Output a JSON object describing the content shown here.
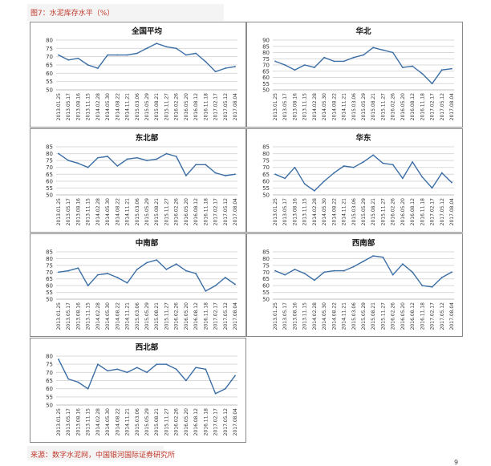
{
  "figure": {
    "title": "图7：水泥库存水平（%）",
    "source": "来源：数字水泥网，中国银河国际证券研究所",
    "page": "9"
  },
  "chart_data": [
    {
      "type": "line",
      "title": "全国平均",
      "ylim": [
        50,
        80
      ],
      "yticks": [
        50,
        55,
        60,
        65,
        70,
        75,
        80
      ],
      "x": [
        "2013.01.25",
        "2013.05.17",
        "2013.08.16",
        "2013.11.15",
        "2014.02.28",
        "2014.05.30",
        "2014.08.22",
        "2014.11.21",
        "2015.03.06",
        "2015.05.29",
        "2015.08.21",
        "2015.11.27",
        "2016.02.26",
        "2016.05.20",
        "2016.08.12",
        "2016.11.18",
        "2017.02.17",
        "2017.05.12",
        "2017.08.04"
      ],
      "series": [
        {
          "values": [
            71,
            68,
            69,
            65,
            63,
            71,
            71,
            71,
            72,
            75,
            78,
            76,
            75,
            71,
            72,
            67,
            61,
            63,
            64
          ]
        }
      ],
      "grid": true
    },
    {
      "type": "line",
      "title": "华北",
      "ylim": [
        50,
        90
      ],
      "yticks": [
        50,
        55,
        60,
        65,
        70,
        75,
        80,
        85,
        90
      ],
      "x": [
        "2013.01.25",
        "2013.05.17",
        "2013.08.16",
        "2013.11.15",
        "2014.02.28",
        "2014.05.30",
        "2014.08.22",
        "2014.11.21",
        "2015.03.06",
        "2015.05.29",
        "2015.08.21",
        "2015.11.27",
        "2016.02.26",
        "2016.05.20",
        "2016.08.12",
        "2016.11.18",
        "2017.02.17",
        "2017.05.12",
        "2017.08.04"
      ],
      "series": [
        {
          "values": [
            73,
            70,
            66,
            70,
            68,
            76,
            73,
            73,
            76,
            78,
            84,
            82,
            80,
            68,
            69,
            63,
            55,
            66,
            67
          ]
        }
      ],
      "grid": true
    },
    {
      "type": "line",
      "title": "东北部",
      "ylim": [
        50,
        85
      ],
      "yticks": [
        50,
        55,
        60,
        65,
        70,
        75,
        80,
        85
      ],
      "x": [
        "2013.01.25",
        "2013.05.17",
        "2013.08.16",
        "2013.11.15",
        "2014.02.28",
        "2014.05.30",
        "2014.08.22",
        "2014.11.21",
        "2015.03.06",
        "2015.05.29",
        "2015.08.21",
        "2015.11.27",
        "2016.02.26",
        "2016.05.20",
        "2016.08.12",
        "2016.11.18",
        "2017.02.17",
        "2017.05.12",
        "2017.08.04"
      ],
      "series": [
        {
          "values": [
            80,
            75,
            73,
            70,
            77,
            78,
            71,
            76,
            77,
            75,
            76,
            80,
            78,
            64,
            72,
            72,
            66,
            64,
            65
          ]
        }
      ],
      "grid": true
    },
    {
      "type": "line",
      "title": "华东",
      "ylim": [
        50,
        85
      ],
      "yticks": [
        50,
        55,
        60,
        65,
        70,
        75,
        80,
        85
      ],
      "x": [
        "2013.01.25",
        "2013.05.17",
        "2013.08.16",
        "2013.11.15",
        "2014.02.28",
        "2014.05.30",
        "2014.08.22",
        "2014.11.21",
        "2015.03.06",
        "2015.05.29",
        "2015.08.21",
        "2015.11.27",
        "2016.02.26",
        "2016.05.20",
        "2016.08.12",
        "2016.11.18",
        "2017.02.17",
        "2017.05.12",
        "2017.08.04"
      ],
      "series": [
        {
          "values": [
            65,
            62,
            70,
            58,
            53,
            60,
            66,
            71,
            70,
            74,
            79,
            73,
            72,
            62,
            74,
            63,
            55,
            66,
            59
          ]
        }
      ],
      "grid": true
    },
    {
      "type": "line",
      "title": "中南部",
      "ylim": [
        50,
        85
      ],
      "yticks": [
        50,
        55,
        60,
        65,
        70,
        75,
        80,
        85
      ],
      "x": [
        "2013.01.25",
        "2013.05.17",
        "2013.08.16",
        "2013.11.15",
        "2014.02.28",
        "2014.05.30",
        "2014.08.22",
        "2014.11.21",
        "2015.03.06",
        "2015.05.29",
        "2015.08.21",
        "2015.11.27",
        "2016.02.26",
        "2016.05.20",
        "2016.08.12",
        "2016.11.18",
        "2017.02.17",
        "2017.05.12",
        "2017.08.04"
      ],
      "series": [
        {
          "values": [
            70,
            71,
            73,
            60,
            68,
            69,
            66,
            62,
            72,
            77,
            79,
            72,
            76,
            71,
            69,
            56,
            60,
            66,
            61
          ]
        }
      ],
      "grid": true
    },
    {
      "type": "line",
      "title": "西南部",
      "ylim": [
        50,
        85
      ],
      "yticks": [
        50,
        55,
        60,
        65,
        70,
        75,
        80,
        85
      ],
      "x": [
        "2013.01.25",
        "2013.05.17",
        "2013.08.16",
        "2013.11.15",
        "2014.02.28",
        "2014.05.30",
        "2014.08.22",
        "2014.11.21",
        "2015.03.06",
        "2015.05.29",
        "2015.08.21",
        "2015.11.27",
        "2016.02.26",
        "2016.05.20",
        "2016.08.12",
        "2016.11.18",
        "2017.02.17",
        "2017.05.12",
        "2017.08.04"
      ],
      "series": [
        {
          "values": [
            71,
            68,
            72,
            69,
            64,
            70,
            71,
            71,
            74,
            78,
            82,
            81,
            68,
            76,
            70,
            60,
            59,
            66,
            70
          ]
        }
      ],
      "grid": true
    },
    {
      "type": "line",
      "title": "西北部",
      "ylim": [
        50,
        80
      ],
      "yticks": [
        50,
        55,
        60,
        65,
        70,
        75,
        80
      ],
      "x": [
        "2013.01.25",
        "2013.05.17",
        "2013.08.16",
        "2013.11.15",
        "2014.02.28",
        "2014.05.30",
        "2014.08.22",
        "2014.11.21",
        "2015.03.06",
        "2015.05.29",
        "2015.08.21",
        "2015.11.27",
        "2016.02.26",
        "2016.05.20",
        "2016.08.12",
        "2016.11.18",
        "2017.02.17",
        "2017.05.12",
        "2017.08.04"
      ],
      "series": [
        {
          "values": [
            78,
            66,
            64,
            60,
            75,
            71,
            72,
            70,
            73,
            70,
            75,
            75,
            72,
            65,
            73,
            72,
            57,
            60,
            68
          ]
        }
      ],
      "grid": true
    }
  ]
}
